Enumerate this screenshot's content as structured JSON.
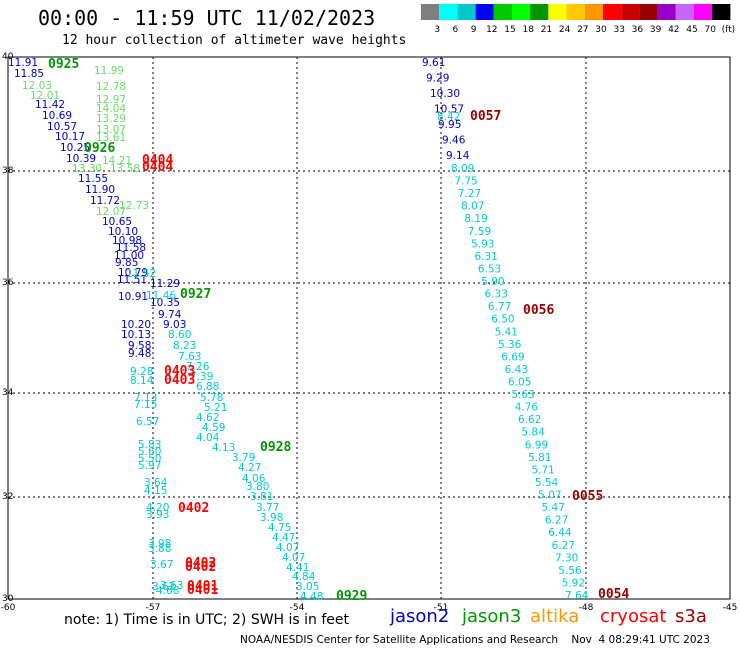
{
  "title": "00:00 - 11:59 UTC 11/02/2023",
  "subtitle": "12 hour collection of altimeter wave heights",
  "legend": {
    "labels": [
      "3",
      "6",
      "9",
      "12",
      "15",
      "18",
      "21",
      "24",
      "27",
      "30",
      "33",
      "36",
      "39",
      "42",
      "45",
      "70",
      "(ft)"
    ],
    "colors": [
      "#808080",
      "#00ffff",
      "#00c8c8",
      "#0000ff",
      "#00c800",
      "#00ff00",
      "#009600",
      "#ffff00",
      "#ffc800",
      "#ff9600",
      "#ff0000",
      "#c80000",
      "#960000",
      "#9600c8",
      "#c864ff",
      "#ff00ff",
      "#000000"
    ]
  },
  "axes": {
    "lat_labels": [
      "40",
      "38",
      "36",
      "34",
      "32",
      "30"
    ],
    "lon_labels": [
      "-60",
      "-57",
      "-54",
      "-51",
      "-48",
      "-45"
    ]
  },
  "track_colors": {
    "jason2": "#0000cc",
    "jason3": "#009600",
    "jason3_light": "#66dd66",
    "cryosat": "#ff0000",
    "s3a": "#990000",
    "s3a_light": "#00cccc",
    "jason2_light": "#00cccc"
  },
  "tracks": [
    {
      "name": "track-west-jason2",
      "color": "#0000cc",
      "values": [
        "11.91",
        "11.85",
        "11.42",
        "10.69",
        "10.57",
        "10.17",
        "10.25",
        "10.39",
        "11.55",
        "11.90",
        "11.72",
        "10.65",
        "10.10",
        "10.98",
        "11.58",
        "11.00",
        "9.85",
        "10.79",
        "11.51",
        "11.29",
        "10.91",
        "10.35",
        "9.74",
        "9.03",
        "10.20",
        "10.13",
        "9.58",
        "9.48"
      ]
    },
    {
      "name": "track-west-jason3",
      "color": "#66dd66",
      "values": [
        "12.03",
        "12.01",
        "12.78",
        "12.97",
        "14.04",
        "13.29",
        "13.07",
        "13.61",
        "14.21",
        "13.30",
        "13.58",
        "12.73",
        "12.07",
        "11.99"
      ]
    },
    {
      "name": "track-west-cyan",
      "color": "#00cccc",
      "values": [
        "11.52",
        "11.46",
        "8.60",
        "8.23",
        "7.63",
        "7.26",
        "9.28",
        "8.14",
        "7.39",
        "6.88",
        "7.13",
        "7.15",
        "5.78",
        "5.21",
        "6.57",
        "4.62",
        "4.59",
        "4.04",
        "5.83",
        "5.60",
        "5.50",
        "4.13",
        "3.79",
        "5.97",
        "4.27",
        "4.06",
        "3.64",
        "4.15",
        "3.80",
        "3.81",
        "3.77",
        "4.20",
        "3.93",
        "3.98",
        "4.75",
        "4.47",
        "4.07",
        "3.98",
        "3.88",
        "4.07",
        "4.41",
        "4.84",
        "3.67",
        "3.62",
        "3.05",
        "4.48",
        "4.68",
        "3.63"
      ]
    },
    {
      "name": "track-east-jason2",
      "color": "#0000cc",
      "values": [
        "9.61",
        "9.29",
        "10.30",
        "10.57",
        "9.95",
        "9.46",
        "9.14"
      ]
    },
    {
      "name": "track-east-cyan",
      "color": "#00cccc",
      "values": [
        "8.42",
        "8.09",
        "7.75",
        "7.27",
        "8.07",
        "8.19",
        "7.59",
        "5.93",
        "6.31",
        "6.53",
        "5.90",
        "6.33",
        "6.77",
        "6.50",
        "5.41",
        "5.36",
        "6.69",
        "6.43",
        "6.05",
        "5.63",
        "4.76",
        "6.62",
        "5.84",
        "6.99",
        "5.81",
        "5.71",
        "5.54",
        "5.07",
        "5.47",
        "6.27",
        "6.44",
        "6.27",
        "7.30",
        "5.56",
        "5.92",
        "7.64"
      ]
    }
  ],
  "times": [
    {
      "label": "0925",
      "color": "#009600"
    },
    {
      "label": "0926",
      "color": "#009600"
    },
    {
      "label": "0404",
      "color": "#ff0000"
    },
    {
      "label": "0404",
      "color": "#ff0000"
    },
    {
      "label": "0927",
      "color": "#009600"
    },
    {
      "label": "0403",
      "color": "#ff0000"
    },
    {
      "label": "0403",
      "color": "#ff0000"
    },
    {
      "label": "0928",
      "color": "#009600"
    },
    {
      "label": "0402",
      "color": "#ff0000"
    },
    {
      "label": "0402",
      "color": "#ff0000"
    },
    {
      "label": "0402",
      "color": "#ff0000"
    },
    {
      "label": "0401",
      "color": "#ff0000"
    },
    {
      "label": "0401",
      "color": "#ff0000"
    },
    {
      "label": "0929",
      "color": "#009600"
    },
    {
      "label": "0057",
      "color": "#990000"
    },
    {
      "label": "0056",
      "color": "#990000"
    },
    {
      "label": "0055",
      "color": "#990000"
    },
    {
      "label": "0054",
      "color": "#990000"
    }
  ],
  "note": "note: 1) Time is in UTC; 2) SWH is in feet",
  "satellites": [
    {
      "label": "jason2",
      "color": "#0000cc"
    },
    {
      "label": "jason3",
      "color": "#009600"
    },
    {
      "label": "altika",
      "color": "#ff9600"
    },
    {
      "label": "cryosat",
      "color": "#ff0000"
    },
    {
      "label": "s3a",
      "color": "#990000"
    }
  ],
  "credit": "NOAA/NESDIS Center for Satellite Applications and Research    Nov  4 08:29:41 UTC 2023"
}
